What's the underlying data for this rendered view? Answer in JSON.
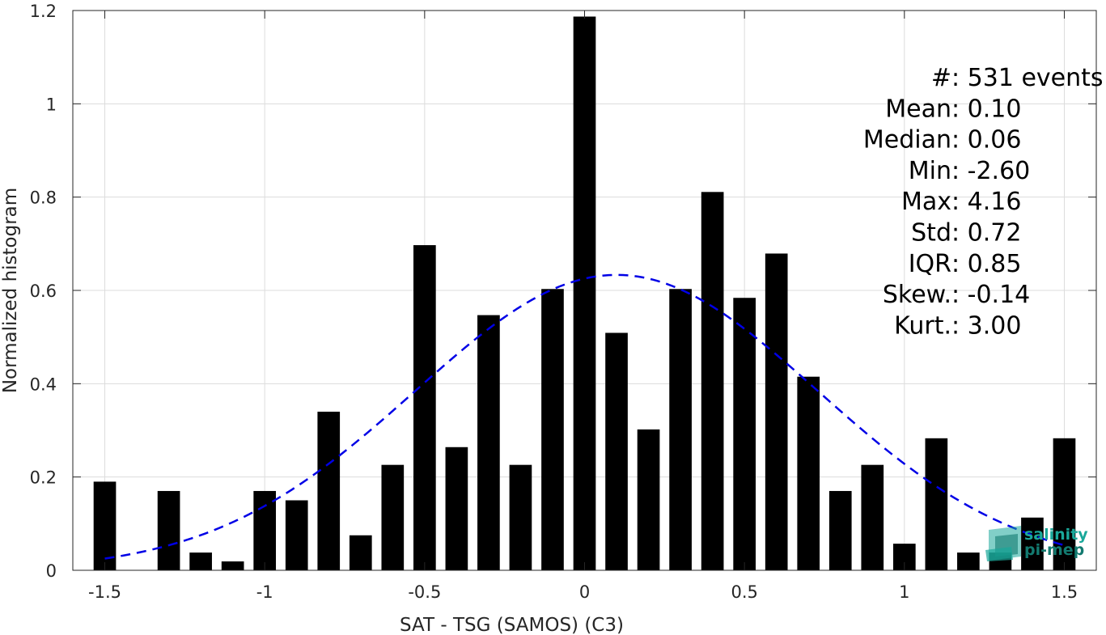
{
  "chart_data": {
    "type": "bar",
    "xlabel": "SAT - TSG (SAMOS) (C3)",
    "ylabel": "Normalized histogram",
    "xlim": [
      -1.6,
      1.6
    ],
    "ylim": [
      0,
      1.2
    ],
    "xticks": [
      -1.5,
      -1,
      -0.5,
      0,
      0.5,
      1,
      1.5
    ],
    "xtick_labels": [
      "-1.5",
      "-1",
      "-0.5",
      "0",
      "0.5",
      "1",
      "1.5"
    ],
    "yticks": [
      0,
      0.2,
      0.4,
      0.6,
      0.8,
      1,
      1.2
    ],
    "ytick_labels": [
      "0",
      "0.2",
      "0.4",
      "0.6",
      "0.8",
      "1",
      "1.2"
    ],
    "grid": true,
    "bar_width": 0.07,
    "x": [
      -1.5,
      -1.4,
      -1.3,
      -1.2,
      -1.1,
      -1.0,
      -0.9,
      -0.8,
      -0.7,
      -0.6,
      -0.5,
      -0.4,
      -0.3,
      -0.2,
      -0.1,
      0.0,
      0.1,
      0.2,
      0.3,
      0.4,
      0.5,
      0.6,
      0.7,
      0.8,
      0.9,
      1.0,
      1.1,
      1.2,
      1.3,
      1.4,
      1.5
    ],
    "values": [
      0.19,
      0.0,
      0.17,
      0.038,
      0.019,
      0.17,
      0.15,
      0.34,
      0.075,
      0.226,
      0.697,
      0.264,
      0.547,
      0.226,
      0.603,
      1.187,
      0.509,
      0.302,
      0.603,
      0.811,
      0.584,
      0.679,
      0.415,
      0.17,
      0.226,
      0.057,
      0.283,
      0.038,
      0.038,
      0.113,
      0.283
    ],
    "bar_color": "#000000",
    "fit": {
      "type": "gaussian",
      "mean": 0.1,
      "std": 0.63,
      "line_style": "dashed",
      "color": "#0000e6"
    },
    "stats": [
      {
        "label": "#  ",
        "value": ": 531 events"
      },
      {
        "label": "Mean ",
        "value": ": 0.10"
      },
      {
        "label": "Median ",
        "value": ": 0.06"
      },
      {
        "label": "Min ",
        "value": ": -2.60"
      },
      {
        "label": "Max ",
        "value": ": 4.16"
      },
      {
        "label": "Std ",
        "value": ": 0.72"
      },
      {
        "label": "IQR ",
        "value": ": 0.85"
      },
      {
        "label": "Skew. ",
        "value": ": -0.14"
      },
      {
        "label": "Kurt. ",
        "value": ": 3.00"
      }
    ]
  },
  "logo": {
    "line1": "salinity",
    "line2": "pi-mep",
    "color": "#1aa89a"
  }
}
